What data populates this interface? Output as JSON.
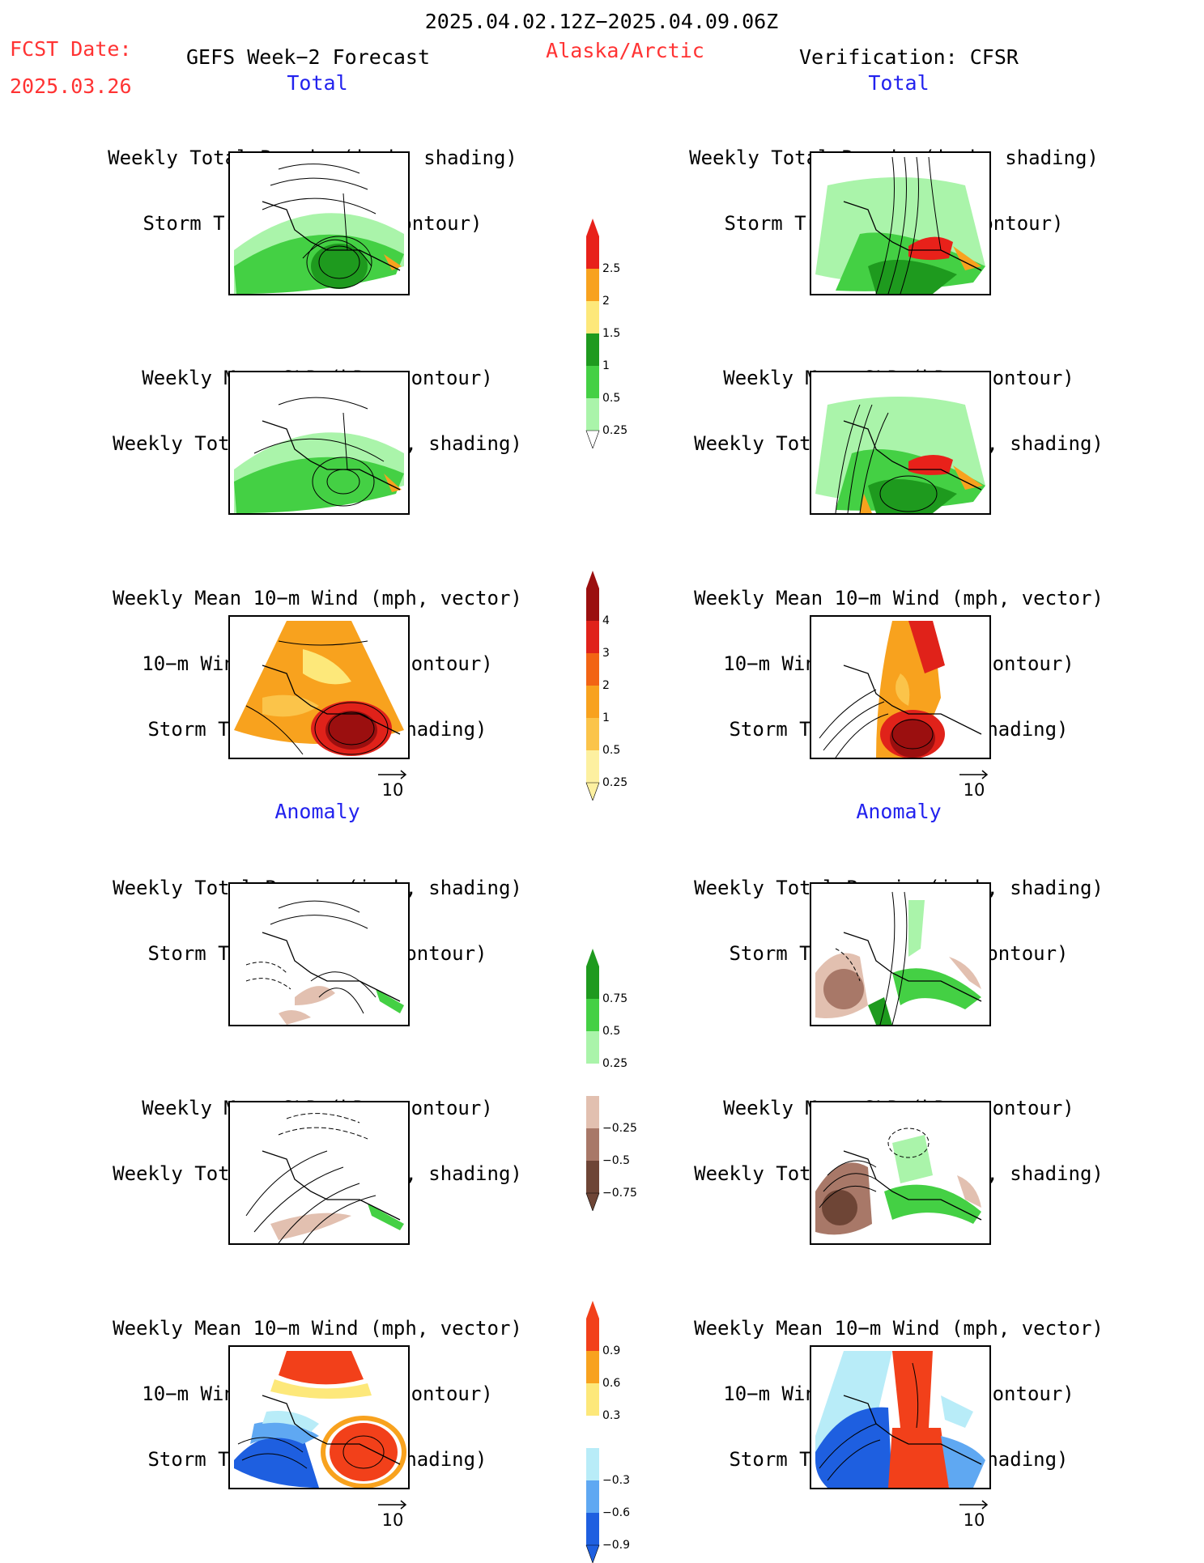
{
  "header": {
    "date_range": "2025.04.02.12Z−2025.04.09.06Z",
    "fcst_label": "FCST Date:",
    "fcst_date": "2025.03.26",
    "forecast_title": "GEFS Week−2 Forecast",
    "region": "Alaska/Arctic",
    "verification": "Verification: CFSR"
  },
  "sections": {
    "total_left": "Total",
    "total_right": "Total",
    "anomaly_left": "Anomaly",
    "anomaly_right": "Anomaly"
  },
  "panel_titles": {
    "precip_track": [
      "Weekly Total Precip (inch, shading)",
      "Storm Track Density (contour)"
    ],
    "slp_precip": [
      "Weekly Mean SLP (hPa, contour)",
      "Weekly Total Precip (inch, shading)"
    ],
    "wind_track": [
      "Weekly Mean 10−m Wind (mph, vector)",
      "10−m Wind Speed (mph, contour)",
      "Storm Track Density (shading)"
    ]
  },
  "reference_vector": "10",
  "colorbars": [
    {
      "name": "total-precip",
      "labels": [
        "2.5",
        "2",
        "1.5",
        "1",
        "0.5",
        "0.25"
      ],
      "colors": [
        "#e8211a",
        "#f8a21e",
        "#fde87a",
        "#1e9a1e",
        "#44d044",
        "#aaf4aa"
      ]
    },
    {
      "name": "total-track",
      "labels": [
        "4",
        "3",
        "2",
        "1",
        "0.5",
        "0.25"
      ],
      "colors": [
        "#9b0f0f",
        "#e0221a",
        "#f26414",
        "#f8a21e",
        "#fbc44a",
        "#fdf0a0"
      ]
    },
    {
      "name": "anomaly-precip",
      "labels": [
        "0.75",
        "0.5",
        "0.25",
        "−0.25",
        "−0.5",
        "−0.75"
      ],
      "colors": [
        "#1e9a1e",
        "#44d044",
        "#aaf4aa",
        "#ffffff",
        "#e2c0b0",
        "#a87868",
        "#6e4536"
      ]
    },
    {
      "name": "anomaly-track",
      "labels": [
        "0.9",
        "0.6",
        "0.3",
        "−0.3",
        "−0.6",
        "−0.9"
      ],
      "colors": [
        "#f2401a",
        "#f8a21e",
        "#fde87a",
        "#ffffff",
        "#b8ecf8",
        "#5fa8f2",
        "#1e5fe0"
      ]
    }
  ],
  "colors": {
    "red_text": "#ff3333",
    "blue_text": "#2222ee"
  }
}
